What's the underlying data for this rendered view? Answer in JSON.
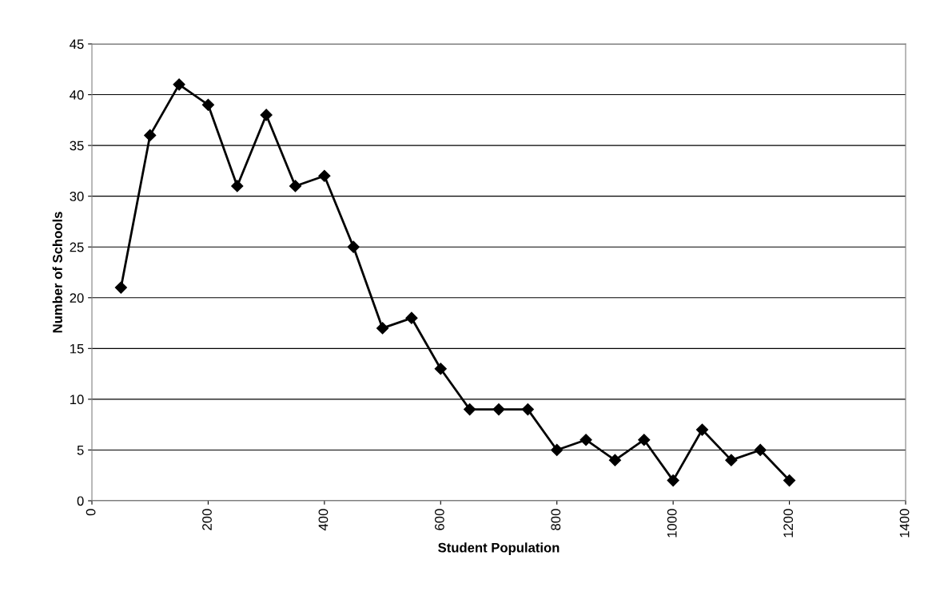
{
  "chart_data": {
    "type": "line",
    "xlabel": "Student Population",
    "ylabel": "Number of Schools",
    "x": [
      50,
      100,
      150,
      200,
      250,
      300,
      350,
      400,
      450,
      500,
      550,
      600,
      650,
      700,
      750,
      800,
      850,
      900,
      950,
      1000,
      1050,
      1100,
      1150,
      1200
    ],
    "series": [
      {
        "color": "#000000",
        "values": [
          21,
          36,
          41,
          39,
          31,
          38,
          31,
          32,
          25,
          17,
          18,
          13,
          9,
          9,
          9,
          5,
          6,
          4,
          6,
          2,
          7,
          4,
          5,
          2
        ]
      }
    ],
    "xlim": [
      0,
      1400
    ],
    "xticks": [
      0,
      200,
      400,
      600,
      800,
      1000,
      1200,
      1400
    ],
    "ylim": [
      0,
      45
    ],
    "yticks": [
      0,
      5,
      10,
      15,
      20,
      25,
      30,
      35,
      40,
      45
    ],
    "grid": "y",
    "marker": "diamond",
    "line_style": "solid"
  }
}
